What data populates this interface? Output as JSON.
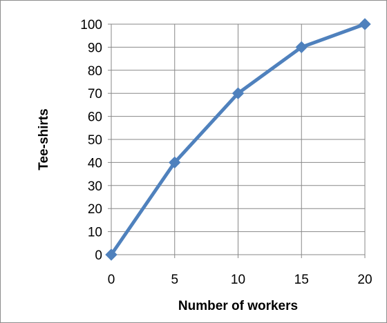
{
  "chart_data": {
    "type": "line",
    "title": "",
    "xlabel": "Number of workers",
    "ylabel": "Tee-shirts",
    "x": [
      0,
      5,
      10,
      15,
      20
    ],
    "series": [
      {
        "values": [
          0,
          40,
          70,
          90,
          100
        ],
        "color": "#4f81bd",
        "marker": "diamond"
      }
    ],
    "xlim": [
      0,
      20
    ],
    "ylim": [
      0,
      100
    ],
    "xticks": [
      "0",
      "5",
      "10",
      "15",
      "20"
    ],
    "yticks": [
      "0",
      "10",
      "20",
      "30",
      "40",
      "50",
      "60",
      "70",
      "80",
      "90",
      "100"
    ],
    "grid": true,
    "legend": "none"
  }
}
